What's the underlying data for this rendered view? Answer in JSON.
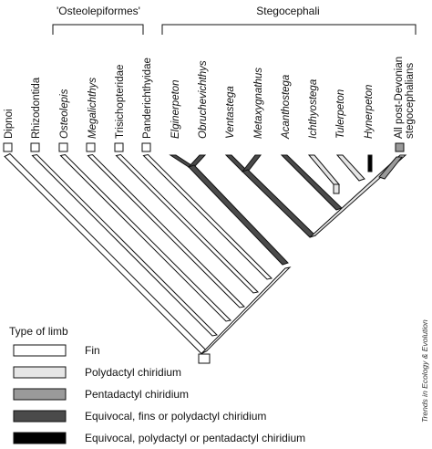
{
  "groups": {
    "osteolepiformes": "'Osteolepiformes'",
    "stegocephali": "Stegocephali"
  },
  "taxa": [
    {
      "id": "dipnoi",
      "label": "Dipnoi",
      "italic": false
    },
    {
      "id": "rhizodontida",
      "label": "Rhizodontida",
      "italic": false
    },
    {
      "id": "osteolepis",
      "label": "Osteolepis",
      "italic": true
    },
    {
      "id": "megalichthys",
      "label": "Megalichthys",
      "italic": true
    },
    {
      "id": "trisichopteridae",
      "label": "Trisichopteridae",
      "italic": false
    },
    {
      "id": "panderichthyidae",
      "label": "Panderichthyidae",
      "italic": false
    },
    {
      "id": "elginerpeton",
      "label": "Elginerpeton",
      "italic": true
    },
    {
      "id": "obruchevichthys",
      "label": "Obruchevichthys",
      "italic": true
    },
    {
      "id": "ventastega",
      "label": "Ventastega",
      "italic": true
    },
    {
      "id": "metaxygnathus",
      "label": "Metaxygnathus",
      "italic": true
    },
    {
      "id": "acanthostega",
      "label": "Acanthostega",
      "italic": true
    },
    {
      "id": "ichthyostega",
      "label": "Ichthyostega",
      "italic": true
    },
    {
      "id": "tulerpeton",
      "label": "Tulerpeton",
      "italic": true
    },
    {
      "id": "hynerpeton",
      "label": "Hynerpeton",
      "italic": true
    },
    {
      "id": "post_devonian",
      "label_line1": "All post-Devonian",
      "label_line2": "stegocephalians",
      "italic": false
    }
  ],
  "legend": {
    "title": "Type of limb",
    "items": [
      {
        "id": "fin",
        "label": "Fin",
        "color": "#ffffff"
      },
      {
        "id": "polydactyl",
        "label": "Polydactyl chiridium",
        "color": "#e6e6e6"
      },
      {
        "id": "pentadactyl",
        "label": "Pentadactyl chiridium",
        "color": "#9a9a9a"
      },
      {
        "id": "equivocal_fins_poly",
        "label": "Equivocal, fins or polydactyl chiridium",
        "color": "#4a4a4a"
      },
      {
        "id": "equivocal_poly_penta",
        "label": "Equivocal, polydactyl or pentadactyl chiridium",
        "color": "#000000"
      }
    ]
  },
  "credit": "Trends in Ecology & Evolution"
}
